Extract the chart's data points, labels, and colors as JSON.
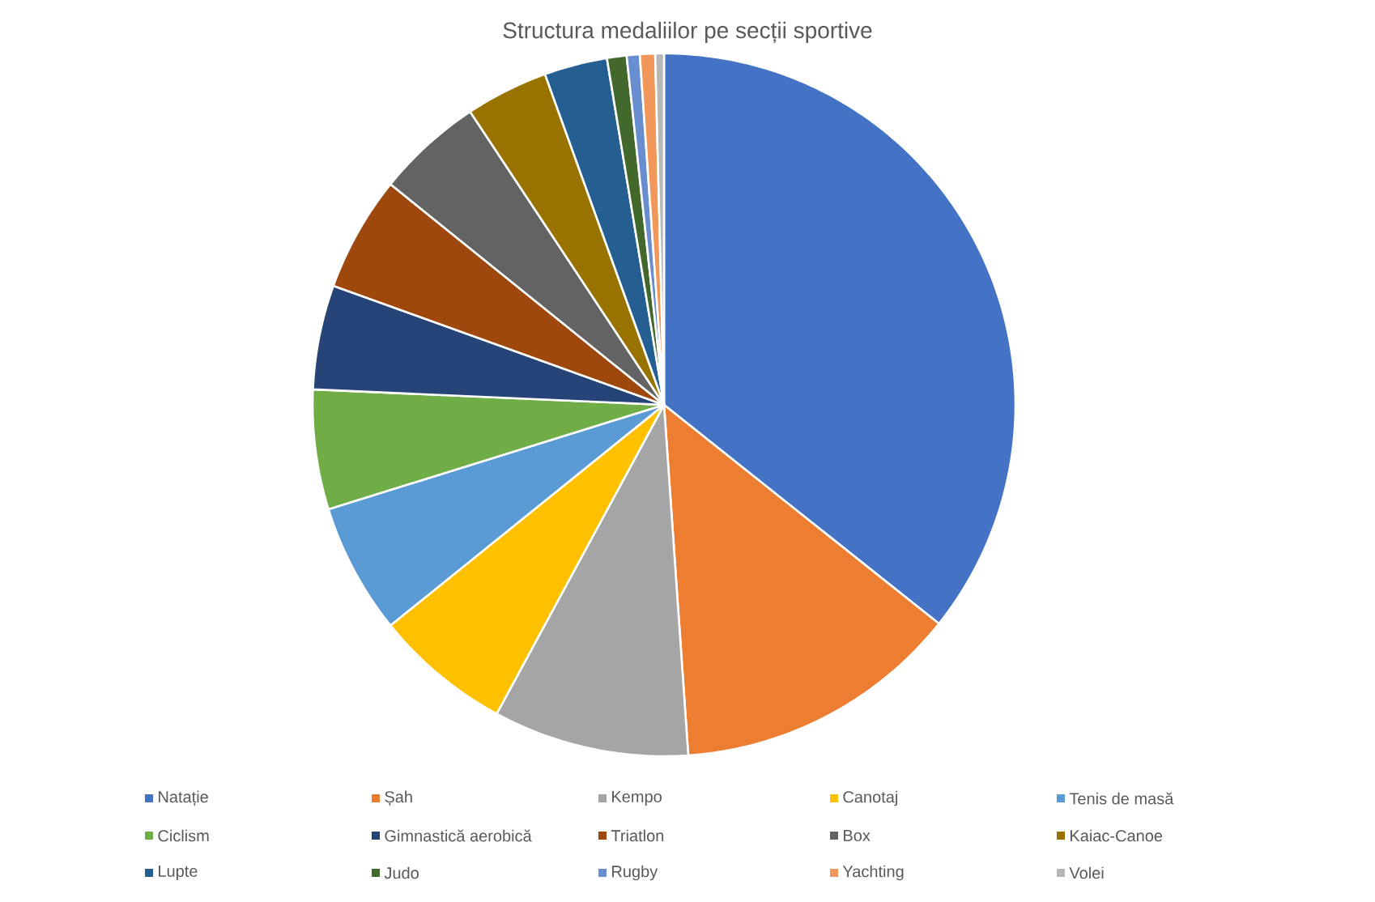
{
  "chart_data": {
    "type": "pie",
    "title": "Structura medaliilor pe secții sportive",
    "categories": [
      "Natație",
      "Șah",
      "Kempo",
      "Canotaj",
      "Tenis de masă",
      "Ciclism",
      "Gimnastică aerobică",
      "Triatlon",
      "Box",
      "Kaiac-Canoe",
      "Lupte",
      "Judo",
      "Rugby",
      "Yachting",
      "Volei"
    ],
    "values": [
      35.7,
      13.2,
      9.0,
      6.3,
      6.0,
      5.5,
      4.8,
      5.3,
      4.9,
      3.8,
      2.9,
      0.9,
      0.6,
      0.7,
      0.4
    ],
    "colors": [
      "#4472c4",
      "#ed7d31",
      "#a5a5a5",
      "#ffc000",
      "#5b9bd5",
      "#70ad47",
      "#264478",
      "#9e480e",
      "#636363",
      "#997300",
      "#255e91",
      "#43682b",
      "#698ed0",
      "#f1975a",
      "#b7b7b7"
    ],
    "legend": "bottom"
  }
}
